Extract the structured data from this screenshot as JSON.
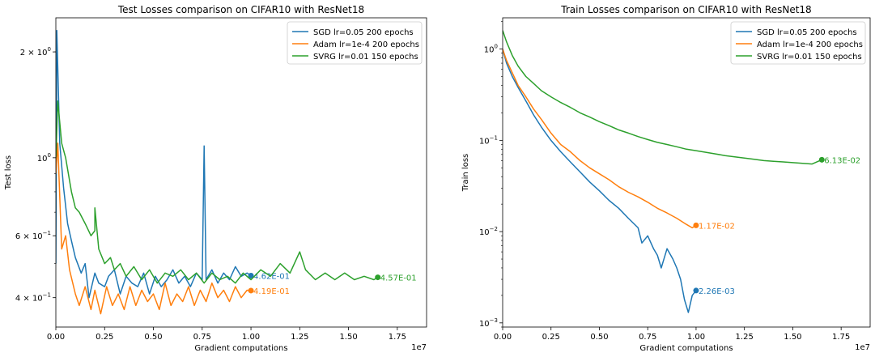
{
  "colors": {
    "sgd": "#1f77b4",
    "adam": "#ff7f0e",
    "svrg": "#2ca02c"
  },
  "chart_data": [
    {
      "type": "line",
      "title": "Test Losses comparison on CIFAR10 with ResNet18",
      "xlabel": "Gradient computations",
      "ylabel": "Test loss",
      "x_multiplier_label": "1e7",
      "xlim": [
        0,
        1.9
      ],
      "ylim": [
        0.33,
        2.5
      ],
      "yscale": "log",
      "xticks": [
        "0.00",
        "0.25",
        "0.50",
        "0.75",
        "1.00",
        "1.25",
        "1.50",
        "1.75"
      ],
      "yticks": [
        {
          "value": 2.0,
          "base": "2 × 10",
          "exp": "0"
        },
        {
          "value": 1.0,
          "base": "10",
          "exp": "0"
        },
        {
          "value": 0.6,
          "base": "6 × 10",
          "exp": "−1"
        },
        {
          "value": 0.4,
          "base": "4 × 10",
          "exp": "−1"
        }
      ],
      "legend_position": "top-right",
      "series": [
        {
          "name": "SGD lr=0.05 200 epochs",
          "color_key": "sgd",
          "end_label": "4.62E-01",
          "points": [
            [
              0,
              0.5
            ],
            [
              0.005,
              2.3
            ],
            [
              0.02,
              1.1
            ],
            [
              0.04,
              0.82
            ],
            [
              0.06,
              0.65
            ],
            [
              0.08,
              0.58
            ],
            [
              0.1,
              0.52
            ],
            [
              0.13,
              0.47
            ],
            [
              0.15,
              0.5
            ],
            [
              0.17,
              0.4
            ],
            [
              0.2,
              0.47
            ],
            [
              0.22,
              0.44
            ],
            [
              0.25,
              0.43
            ],
            [
              0.27,
              0.46
            ],
            [
              0.3,
              0.48
            ],
            [
              0.33,
              0.41
            ],
            [
              0.36,
              0.46
            ],
            [
              0.39,
              0.44
            ],
            [
              0.42,
              0.43
            ],
            [
              0.45,
              0.47
            ],
            [
              0.48,
              0.41
            ],
            [
              0.51,
              0.46
            ],
            [
              0.54,
              0.43
            ],
            [
              0.57,
              0.45
            ],
            [
              0.6,
              0.48
            ],
            [
              0.63,
              0.44
            ],
            [
              0.66,
              0.46
            ],
            [
              0.69,
              0.43
            ],
            [
              0.72,
              0.47
            ],
            [
              0.75,
              0.45
            ],
            [
              0.76,
              1.08
            ],
            [
              0.77,
              0.45
            ],
            [
              0.8,
              0.48
            ],
            [
              0.83,
              0.44
            ],
            [
              0.86,
              0.47
            ],
            [
              0.89,
              0.45
            ],
            [
              0.92,
              0.49
            ],
            [
              0.95,
              0.46
            ],
            [
              0.98,
              0.47
            ],
            [
              1.0,
              0.462
            ]
          ]
        },
        {
          "name": "Adam lr=1e-4 200 epochs",
          "color_key": "adam",
          "end_label": "4.19E-01",
          "points": [
            [
              0,
              0.9
            ],
            [
              0.01,
              1.1
            ],
            [
              0.03,
              0.55
            ],
            [
              0.05,
              0.6
            ],
            [
              0.07,
              0.48
            ],
            [
              0.1,
              0.41
            ],
            [
              0.12,
              0.38
            ],
            [
              0.15,
              0.43
            ],
            [
              0.18,
              0.37
            ],
            [
              0.2,
              0.42
            ],
            [
              0.23,
              0.36
            ],
            [
              0.26,
              0.43
            ],
            [
              0.29,
              0.38
            ],
            [
              0.32,
              0.41
            ],
            [
              0.35,
              0.37
            ],
            [
              0.38,
              0.43
            ],
            [
              0.41,
              0.38
            ],
            [
              0.44,
              0.42
            ],
            [
              0.47,
              0.39
            ],
            [
              0.5,
              0.41
            ],
            [
              0.53,
              0.37
            ],
            [
              0.56,
              0.44
            ],
            [
              0.59,
              0.38
            ],
            [
              0.62,
              0.41
            ],
            [
              0.65,
              0.39
            ],
            [
              0.68,
              0.43
            ],
            [
              0.71,
              0.38
            ],
            [
              0.74,
              0.42
            ],
            [
              0.77,
              0.39
            ],
            [
              0.8,
              0.44
            ],
            [
              0.83,
              0.4
            ],
            [
              0.86,
              0.42
            ],
            [
              0.89,
              0.39
            ],
            [
              0.92,
              0.43
            ],
            [
              0.95,
              0.4
            ],
            [
              0.98,
              0.42
            ],
            [
              1.0,
              0.419
            ]
          ]
        },
        {
          "name": "SVRG lr=0.01 150 epochs",
          "color_key": "svrg",
          "end_label": "4.57E-01",
          "points": [
            [
              0,
              1.0
            ],
            [
              0.01,
              1.45
            ],
            [
              0.03,
              1.1
            ],
            [
              0.05,
              1.0
            ],
            [
              0.08,
              0.8
            ],
            [
              0.1,
              0.72
            ],
            [
              0.12,
              0.7
            ],
            [
              0.15,
              0.65
            ],
            [
              0.18,
              0.6
            ],
            [
              0.2,
              0.62
            ],
            [
              0.2,
              0.72
            ],
            [
              0.22,
              0.55
            ],
            [
              0.25,
              0.5
            ],
            [
              0.28,
              0.52
            ],
            [
              0.3,
              0.48
            ],
            [
              0.33,
              0.5
            ],
            [
              0.36,
              0.46
            ],
            [
              0.4,
              0.49
            ],
            [
              0.44,
              0.45
            ],
            [
              0.48,
              0.48
            ],
            [
              0.52,
              0.44
            ],
            [
              0.56,
              0.47
            ],
            [
              0.6,
              0.46
            ],
            [
              0.64,
              0.48
            ],
            [
              0.68,
              0.45
            ],
            [
              0.72,
              0.47
            ],
            [
              0.76,
              0.44
            ],
            [
              0.8,
              0.47
            ],
            [
              0.84,
              0.45
            ],
            [
              0.88,
              0.46
            ],
            [
              0.92,
              0.44
            ],
            [
              0.96,
              0.47
            ],
            [
              1.0,
              0.45
            ],
            [
              1.05,
              0.48
            ],
            [
              1.1,
              0.46
            ],
            [
              1.15,
              0.5
            ],
            [
              1.2,
              0.47
            ],
            [
              1.25,
              0.54
            ],
            [
              1.28,
              0.48
            ],
            [
              1.33,
              0.45
            ],
            [
              1.38,
              0.47
            ],
            [
              1.43,
              0.45
            ],
            [
              1.48,
              0.47
            ],
            [
              1.53,
              0.45
            ],
            [
              1.58,
              0.46
            ],
            [
              1.63,
              0.45
            ],
            [
              1.65,
              0.457
            ]
          ]
        }
      ]
    },
    {
      "type": "line",
      "title": "Train Losses comparison on CIFAR10 with ResNet18",
      "xlabel": "Gradient computations",
      "ylabel": "Train loss",
      "x_multiplier_label": "1e7",
      "xlim": [
        0,
        1.9
      ],
      "ylim": [
        0.0009,
        2.2
      ],
      "yscale": "log",
      "xticks": [
        "0.00",
        "0.25",
        "0.50",
        "0.75",
        "1.00",
        "1.25",
        "1.50",
        "1.75"
      ],
      "yticks": [
        {
          "value": 1.0,
          "base": "10",
          "exp": "0"
        },
        {
          "value": 0.1,
          "base": "10",
          "exp": "−1"
        },
        {
          "value": 0.01,
          "base": "10",
          "exp": "−2"
        },
        {
          "value": 0.001,
          "base": "10",
          "exp": "−3"
        }
      ],
      "legend_position": "top-right",
      "series": [
        {
          "name": "SGD lr=0.05 200 epochs",
          "color_key": "sgd",
          "end_label": "2.26E-03",
          "points": [
            [
              0,
              1.0
            ],
            [
              0.02,
              0.7
            ],
            [
              0.05,
              0.5
            ],
            [
              0.08,
              0.38
            ],
            [
              0.12,
              0.27
            ],
            [
              0.16,
              0.19
            ],
            [
              0.2,
              0.14
            ],
            [
              0.25,
              0.1
            ],
            [
              0.3,
              0.075
            ],
            [
              0.35,
              0.058
            ],
            [
              0.4,
              0.045
            ],
            [
              0.45,
              0.035
            ],
            [
              0.5,
              0.028
            ],
            [
              0.55,
              0.022
            ],
            [
              0.6,
              0.018
            ],
            [
              0.65,
              0.014
            ],
            [
              0.7,
              0.011
            ],
            [
              0.72,
              0.0075
            ],
            [
              0.75,
              0.009
            ],
            [
              0.78,
              0.0065
            ],
            [
              0.8,
              0.0055
            ],
            [
              0.82,
              0.004
            ],
            [
              0.85,
              0.0065
            ],
            [
              0.88,
              0.005
            ],
            [
              0.9,
              0.004
            ],
            [
              0.92,
              0.003
            ],
            [
              0.94,
              0.0018
            ],
            [
              0.96,
              0.0013
            ],
            [
              0.98,
              0.002
            ],
            [
              1.0,
              0.00226
            ]
          ]
        },
        {
          "name": "Adam lr=1e-4 200 epochs",
          "color_key": "adam",
          "end_label": "1.17E-02",
          "points": [
            [
              0,
              1.0
            ],
            [
              0.02,
              0.75
            ],
            [
              0.05,
              0.55
            ],
            [
              0.08,
              0.4
            ],
            [
              0.12,
              0.3
            ],
            [
              0.16,
              0.22
            ],
            [
              0.2,
              0.17
            ],
            [
              0.25,
              0.12
            ],
            [
              0.3,
              0.09
            ],
            [
              0.35,
              0.075
            ],
            [
              0.4,
              0.06
            ],
            [
              0.45,
              0.05
            ],
            [
              0.5,
              0.043
            ],
            [
              0.55,
              0.037
            ],
            [
              0.6,
              0.031
            ],
            [
              0.65,
              0.027
            ],
            [
              0.7,
              0.024
            ],
            [
              0.75,
              0.021
            ],
            [
              0.8,
              0.018
            ],
            [
              0.85,
              0.016
            ],
            [
              0.9,
              0.014
            ],
            [
              0.95,
              0.012
            ],
            [
              0.98,
              0.011
            ],
            [
              1.0,
              0.0117
            ]
          ]
        },
        {
          "name": "SVRG lr=0.01 150 epochs",
          "color_key": "svrg",
          "end_label": "6.13E-02",
          "points": [
            [
              0,
              1.6
            ],
            [
              0.02,
              1.2
            ],
            [
              0.05,
              0.85
            ],
            [
              0.08,
              0.65
            ],
            [
              0.12,
              0.5
            ],
            [
              0.16,
              0.42
            ],
            [
              0.2,
              0.35
            ],
            [
              0.25,
              0.3
            ],
            [
              0.3,
              0.26
            ],
            [
              0.35,
              0.23
            ],
            [
              0.4,
              0.2
            ],
            [
              0.45,
              0.18
            ],
            [
              0.5,
              0.16
            ],
            [
              0.55,
              0.145
            ],
            [
              0.6,
              0.13
            ],
            [
              0.65,
              0.12
            ],
            [
              0.7,
              0.11
            ],
            [
              0.75,
              0.102
            ],
            [
              0.8,
              0.095
            ],
            [
              0.85,
              0.09
            ],
            [
              0.9,
              0.085
            ],
            [
              0.95,
              0.08
            ],
            [
              1.0,
              0.077
            ],
            [
              1.05,
              0.074
            ],
            [
              1.1,
              0.071
            ],
            [
              1.15,
              0.068
            ],
            [
              1.2,
              0.066
            ],
            [
              1.25,
              0.064
            ],
            [
              1.3,
              0.062
            ],
            [
              1.35,
              0.06
            ],
            [
              1.4,
              0.059
            ],
            [
              1.45,
              0.058
            ],
            [
              1.5,
              0.057
            ],
            [
              1.55,
              0.056
            ],
            [
              1.6,
              0.055
            ],
            [
              1.65,
              0.0613
            ]
          ]
        }
      ]
    }
  ]
}
